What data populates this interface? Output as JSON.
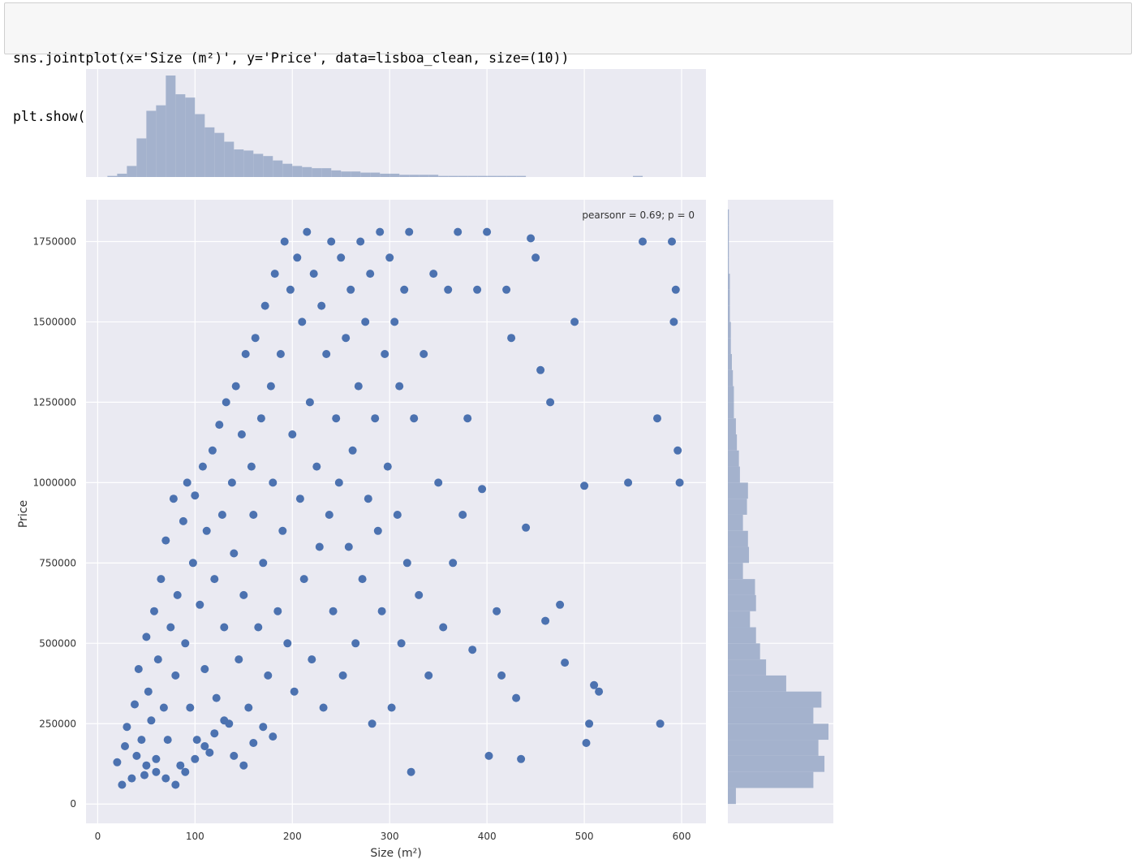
{
  "notebook": {
    "code_lines": [
      "sns.jointplot(x='Size (m²)', y='Price', data=lisboa_clean, size=(10))",
      "plt.show()"
    ]
  },
  "colors": {
    "axes_bg": "#eaeaf2",
    "grid": "#ffffff",
    "points": "#4c72b0",
    "hist": "#a4b2cd",
    "text": "#333333"
  },
  "chart_data": {
    "type": "scatter",
    "title": "",
    "xlabel": "Size (m²)",
    "ylabel": "Price",
    "xlim": [
      -12,
      625
    ],
    "ylim": [
      -60000,
      1880000
    ],
    "xticks": [
      0,
      100,
      200,
      300,
      400,
      500,
      600
    ],
    "yticks": [
      0,
      250000,
      500000,
      750000,
      1000000,
      1250000,
      1500000,
      1750000
    ],
    "annotation": "pearsonr = 0.69; p = 0",
    "grid": true,
    "points": [
      [
        20,
        130000
      ],
      [
        25,
        60000
      ],
      [
        28,
        180000
      ],
      [
        30,
        240000
      ],
      [
        35,
        80000
      ],
      [
        38,
        310000
      ],
      [
        40,
        150000
      ],
      [
        42,
        420000
      ],
      [
        45,
        200000
      ],
      [
        48,
        90000
      ],
      [
        50,
        520000
      ],
      [
        52,
        350000
      ],
      [
        55,
        260000
      ],
      [
        58,
        600000
      ],
      [
        60,
        140000
      ],
      [
        62,
        450000
      ],
      [
        65,
        700000
      ],
      [
        68,
        300000
      ],
      [
        70,
        820000
      ],
      [
        72,
        200000
      ],
      [
        75,
        550000
      ],
      [
        78,
        950000
      ],
      [
        80,
        400000
      ],
      [
        82,
        650000
      ],
      [
        85,
        120000
      ],
      [
        88,
        880000
      ],
      [
        90,
        500000
      ],
      [
        92,
        1000000
      ],
      [
        95,
        300000
      ],
      [
        98,
        750000
      ],
      [
        100,
        960000
      ],
      [
        102,
        200000
      ],
      [
        105,
        620000
      ],
      [
        108,
        1050000
      ],
      [
        110,
        420000
      ],
      [
        112,
        850000
      ],
      [
        115,
        160000
      ],
      [
        118,
        1100000
      ],
      [
        120,
        700000
      ],
      [
        122,
        330000
      ],
      [
        125,
        1180000
      ],
      [
        128,
        900000
      ],
      [
        130,
        550000
      ],
      [
        132,
        1250000
      ],
      [
        135,
        250000
      ],
      [
        138,
        1000000
      ],
      [
        140,
        780000
      ],
      [
        142,
        1300000
      ],
      [
        145,
        450000
      ],
      [
        148,
        1150000
      ],
      [
        150,
        650000
      ],
      [
        152,
        1400000
      ],
      [
        155,
        300000
      ],
      [
        158,
        1050000
      ],
      [
        160,
        900000
      ],
      [
        162,
        1450000
      ],
      [
        165,
        550000
      ],
      [
        168,
        1200000
      ],
      [
        170,
        750000
      ],
      [
        172,
        1550000
      ],
      [
        175,
        400000
      ],
      [
        178,
        1300000
      ],
      [
        180,
        1000000
      ],
      [
        182,
        1650000
      ],
      [
        185,
        600000
      ],
      [
        188,
        1400000
      ],
      [
        190,
        850000
      ],
      [
        192,
        1750000
      ],
      [
        195,
        500000
      ],
      [
        198,
        1600000
      ],
      [
        200,
        1150000
      ],
      [
        202,
        350000
      ],
      [
        205,
        1700000
      ],
      [
        208,
        950000
      ],
      [
        210,
        1500000
      ],
      [
        212,
        700000
      ],
      [
        215,
        1780000
      ],
      [
        218,
        1250000
      ],
      [
        220,
        450000
      ],
      [
        222,
        1650000
      ],
      [
        225,
        1050000
      ],
      [
        228,
        800000
      ],
      [
        230,
        1550000
      ],
      [
        232,
        300000
      ],
      [
        235,
        1400000
      ],
      [
        238,
        900000
      ],
      [
        240,
        1750000
      ],
      [
        242,
        600000
      ],
      [
        245,
        1200000
      ],
      [
        248,
        1000000
      ],
      [
        250,
        1700000
      ],
      [
        252,
        400000
      ],
      [
        255,
        1450000
      ],
      [
        258,
        800000
      ],
      [
        260,
        1600000
      ],
      [
        262,
        1100000
      ],
      [
        265,
        500000
      ],
      [
        268,
        1300000
      ],
      [
        270,
        1750000
      ],
      [
        272,
        700000
      ],
      [
        275,
        1500000
      ],
      [
        278,
        950000
      ],
      [
        280,
        1650000
      ],
      [
        282,
        250000
      ],
      [
        285,
        1200000
      ],
      [
        288,
        850000
      ],
      [
        290,
        1780000
      ],
      [
        292,
        600000
      ],
      [
        295,
        1400000
      ],
      [
        298,
        1050000
      ],
      [
        300,
        1700000
      ],
      [
        302,
        300000
      ],
      [
        305,
        1500000
      ],
      [
        308,
        900000
      ],
      [
        310,
        1300000
      ],
      [
        312,
        500000
      ],
      [
        315,
        1600000
      ],
      [
        318,
        750000
      ],
      [
        320,
        1780000
      ],
      [
        322,
        100000
      ],
      [
        325,
        1200000
      ],
      [
        330,
        650000
      ],
      [
        335,
        1400000
      ],
      [
        340,
        400000
      ],
      [
        345,
        1650000
      ],
      [
        350,
        1000000
      ],
      [
        355,
        550000
      ],
      [
        360,
        1600000
      ],
      [
        365,
        750000
      ],
      [
        370,
        1780000
      ],
      [
        375,
        900000
      ],
      [
        380,
        1200000
      ],
      [
        385,
        480000
      ],
      [
        390,
        1600000
      ],
      [
        395,
        980000
      ],
      [
        400,
        1780000
      ],
      [
        402,
        150000
      ],
      [
        410,
        600000
      ],
      [
        415,
        400000
      ],
      [
        420,
        1600000
      ],
      [
        425,
        1450000
      ],
      [
        430,
        330000
      ],
      [
        435,
        140000
      ],
      [
        440,
        860000
      ],
      [
        445,
        1760000
      ],
      [
        450,
        1700000
      ],
      [
        455,
        1350000
      ],
      [
        460,
        570000
      ],
      [
        465,
        1250000
      ],
      [
        475,
        620000
      ],
      [
        480,
        440000
      ],
      [
        490,
        1500000
      ],
      [
        500,
        990000
      ],
      [
        502,
        190000
      ],
      [
        505,
        250000
      ],
      [
        510,
        370000
      ],
      [
        515,
        350000
      ],
      [
        545,
        1000000
      ],
      [
        560,
        1750000
      ],
      [
        575,
        1200000
      ],
      [
        578,
        250000
      ],
      [
        590,
        1750000
      ],
      [
        592,
        1500000
      ],
      [
        594,
        1600000
      ],
      [
        596,
        1100000
      ],
      [
        598,
        1000000
      ],
      [
        50,
        120000
      ],
      [
        60,
        100000
      ],
      [
        70,
        80000
      ],
      [
        80,
        60000
      ],
      [
        90,
        100000
      ],
      [
        100,
        140000
      ],
      [
        110,
        180000
      ],
      [
        120,
        220000
      ],
      [
        130,
        260000
      ],
      [
        140,
        150000
      ],
      [
        150,
        120000
      ],
      [
        160,
        190000
      ],
      [
        170,
        240000
      ],
      [
        180,
        210000
      ]
    ],
    "marginal_x": {
      "bin_width": 10,
      "start": 0,
      "counts": [
        0,
        1,
        3,
        10,
        35,
        60,
        65,
        92,
        75,
        72,
        57,
        45,
        40,
        32,
        25,
        24,
        21,
        19,
        15,
        12,
        10,
        9,
        8,
        8,
        6,
        5,
        5,
        4,
        4,
        3,
        3,
        2,
        2,
        2,
        2,
        1,
        1,
        1,
        1,
        1,
        1,
        1,
        1,
        1,
        0,
        0,
        0,
        0,
        0,
        0,
        0,
        0,
        0,
        0,
        0,
        1,
        0,
        0,
        0,
        0,
        0
      ]
    },
    "marginal_y": {
      "bin_width": 50000,
      "start": 0,
      "counts": [
        8,
        85,
        96,
        90,
        100,
        85,
        93,
        58,
        38,
        32,
        28,
        22,
        28,
        27,
        15,
        21,
        20,
        15,
        19,
        20,
        12,
        11,
        9,
        8,
        6,
        6,
        5,
        4,
        3,
        3,
        2,
        2,
        2,
        1,
        1,
        1,
        1
      ]
    }
  }
}
